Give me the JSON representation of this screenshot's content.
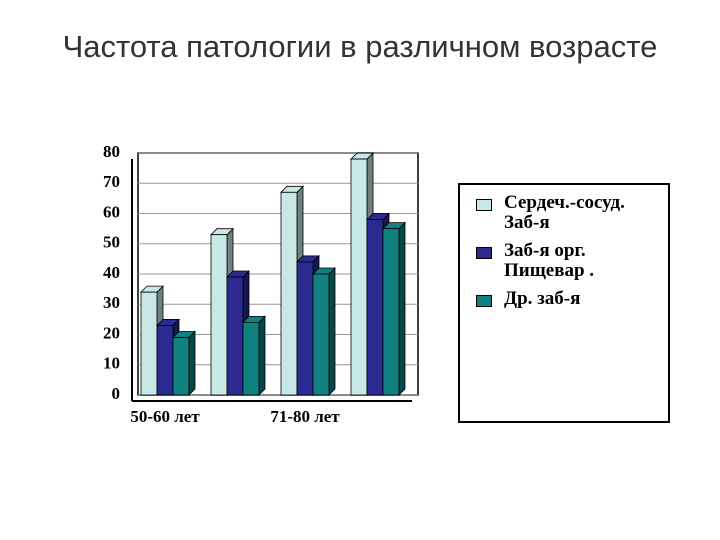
{
  "chart_data": {
    "type": "bar",
    "title": "Частота патологии в различном возрасте",
    "categories": [
      "50-60 лет",
      null,
      "71-80 лет",
      null
    ],
    "series": [
      {
        "name": "Сердеч.-сосуд. Заб-я",
        "color": "#c8e8e8",
        "values": [
          34,
          53,
          67,
          78
        ]
      },
      {
        "name": "Заб-я орг. Пищевар .",
        "color": "#2a2a90",
        "values": [
          23,
          39,
          44,
          58
        ]
      },
      {
        "name": "Др. заб-я",
        "color": "#108080",
        "values": [
          19,
          24,
          40,
          55
        ]
      }
    ],
    "ylim": [
      0,
      80
    ],
    "yticks": [
      0,
      10,
      20,
      30,
      40,
      50,
      60,
      70,
      80
    ],
    "grid": true
  }
}
